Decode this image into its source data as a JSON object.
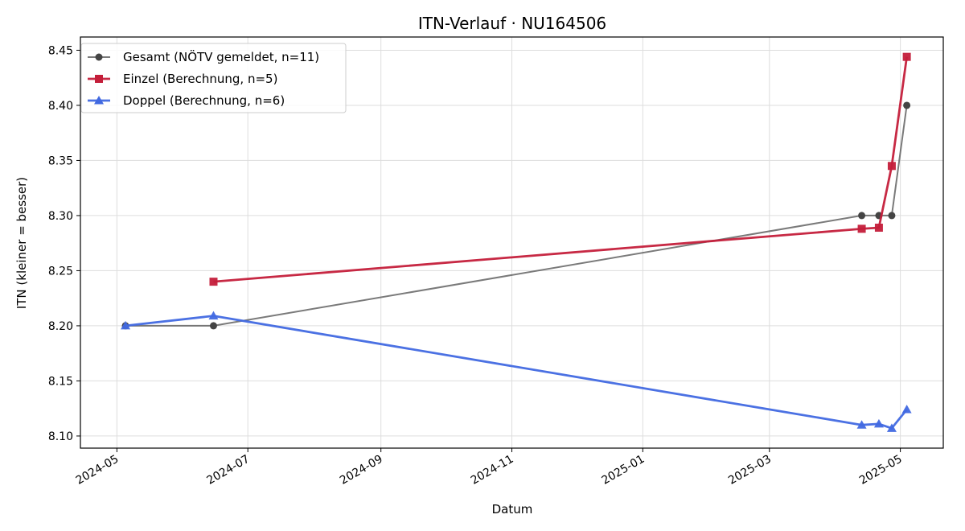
{
  "chart_data": {
    "type": "line",
    "title": "ITN-Verlauf · NU164506",
    "xlabel": "Datum",
    "ylabel": "ITN  (kleiner = besser)",
    "x_tick_labels": [
      "2024-05",
      "2024-07",
      "2024-09",
      "2024-11",
      "2025-01",
      "2025-03",
      "2025-05"
    ],
    "x_ticks": [
      "2024-05-01",
      "2024-07-01",
      "2024-09-01",
      "2024-11-01",
      "2025-01-01",
      "2025-03-01",
      "2025-05-01"
    ],
    "y_ticks": [
      8.1,
      8.15,
      8.2,
      8.25,
      8.3,
      8.35,
      8.4,
      8.45
    ],
    "y_tick_labels": [
      "8.10",
      "8.15",
      "8.20",
      "8.25",
      "8.30",
      "8.35",
      "8.40",
      "8.45"
    ],
    "xlim": [
      "2024-04-14",
      "2025-05-21"
    ],
    "ylim": [
      8.089,
      8.462
    ],
    "grid": true,
    "legend_position": "top-left",
    "series": [
      {
        "name": "Gesamt (NÖTV gemeldet, n=11)",
        "color": "#555555",
        "marker": "circle",
        "points": [
          {
            "x": "2024-05-05",
            "y": 8.2
          },
          {
            "x": "2024-06-15",
            "y": 8.2
          },
          {
            "x": "2025-04-13",
            "y": 8.3
          },
          {
            "x": "2025-04-21",
            "y": 8.3
          },
          {
            "x": "2025-04-27",
            "y": 8.3
          },
          {
            "x": "2025-05-04",
            "y": 8.4
          }
        ]
      },
      {
        "name": "Einzel (Berechnung, n=5)",
        "color": "#c41e3a",
        "marker": "square",
        "points": [
          {
            "x": "2024-06-15",
            "y": 8.24
          },
          {
            "x": "2025-04-13",
            "y": 8.288
          },
          {
            "x": "2025-04-21",
            "y": 8.289
          },
          {
            "x": "2025-04-27",
            "y": 8.345
          },
          {
            "x": "2025-05-04",
            "y": 8.444
          }
        ]
      },
      {
        "name": "Doppel (Berechnung, n=6)",
        "color": "#4169e1",
        "marker": "triangle",
        "points": [
          {
            "x": "2024-05-05",
            "y": 8.2
          },
          {
            "x": "2024-06-15",
            "y": 8.209
          },
          {
            "x": "2025-04-13",
            "y": 8.11
          },
          {
            "x": "2025-04-21",
            "y": 8.111
          },
          {
            "x": "2025-04-27",
            "y": 8.107
          },
          {
            "x": "2025-05-04",
            "y": 8.124
          }
        ]
      }
    ]
  }
}
